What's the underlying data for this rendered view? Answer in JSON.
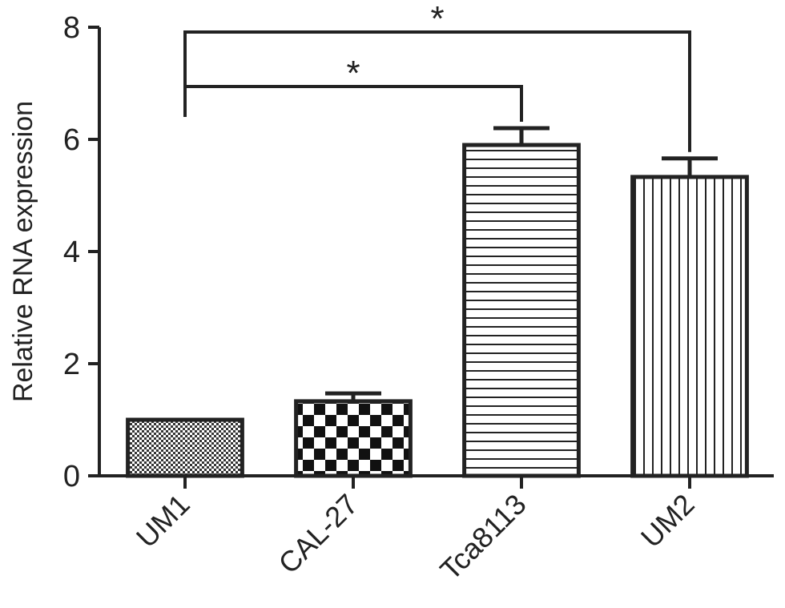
{
  "chart_data": {
    "type": "bar",
    "y_label": "Relative RNA expression",
    "categories": [
      "UM1",
      "CAL-27",
      "Tca8113",
      "UM2"
    ],
    "values": [
      1.0,
      1.33,
      5.9,
      5.33
    ],
    "errors": [
      0,
      0.14,
      0.3,
      0.33
    ],
    "patterns": [
      "dots",
      "checker",
      "horizontal",
      "vertical"
    ],
    "color": "#222222",
    "ylim": [
      0,
      8
    ],
    "yticks": [
      0,
      2,
      4,
      6,
      8
    ],
    "annotations": [
      {
        "text": "*",
        "between": [
          0,
          2
        ]
      },
      {
        "text": "*",
        "between": [
          0,
          3
        ]
      }
    ]
  }
}
